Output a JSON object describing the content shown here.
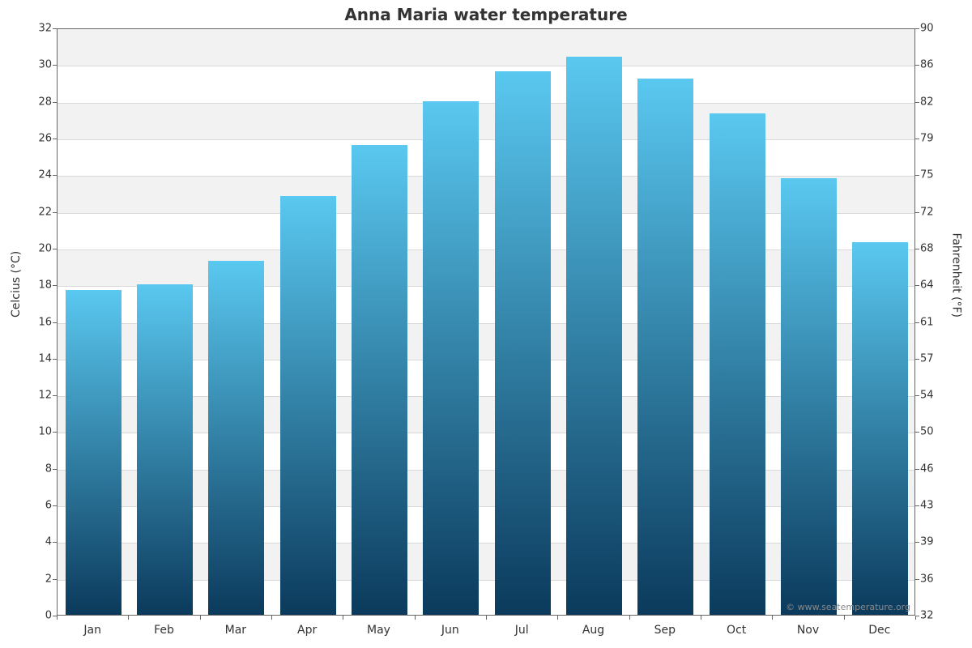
{
  "chart": {
    "type": "bar",
    "title": "Anna Maria water temperature",
    "title_fontsize": 20,
    "title_fontweight": "bold",
    "background_color": "#ffffff",
    "plot_border_color": "#666666",
    "band_color": "#f2f2f2",
    "gridline_color": "#d9d9d9",
    "tick_font_size": 13,
    "label_font_size": 14,
    "y_left": {
      "label": "Celcius (°C)",
      "min": 0,
      "max": 32,
      "ticks": [
        0,
        2,
        4,
        6,
        8,
        10,
        12,
        14,
        16,
        18,
        20,
        22,
        24,
        26,
        28,
        30,
        32
      ]
    },
    "y_right": {
      "label": "Fahrenheit (°F)",
      "ticks": [
        32,
        36,
        39,
        43,
        46,
        50,
        54,
        57,
        61,
        64,
        68,
        72,
        75,
        79,
        82,
        86,
        90
      ]
    },
    "categories": [
      "Jan",
      "Feb",
      "Mar",
      "Apr",
      "May",
      "Jun",
      "Jul",
      "Aug",
      "Sep",
      "Oct",
      "Nov",
      "Dec"
    ],
    "values_celsius": [
      17.7,
      18.0,
      19.3,
      22.8,
      25.6,
      28.0,
      29.6,
      30.4,
      29.2,
      27.3,
      23.8,
      20.3
    ],
    "bar_gradient_top": "#5ac8f0",
    "bar_gradient_bottom": "#0b3a5c",
    "bar_width_ratio": 0.78,
    "credit": "© www.seatemperature.org"
  }
}
